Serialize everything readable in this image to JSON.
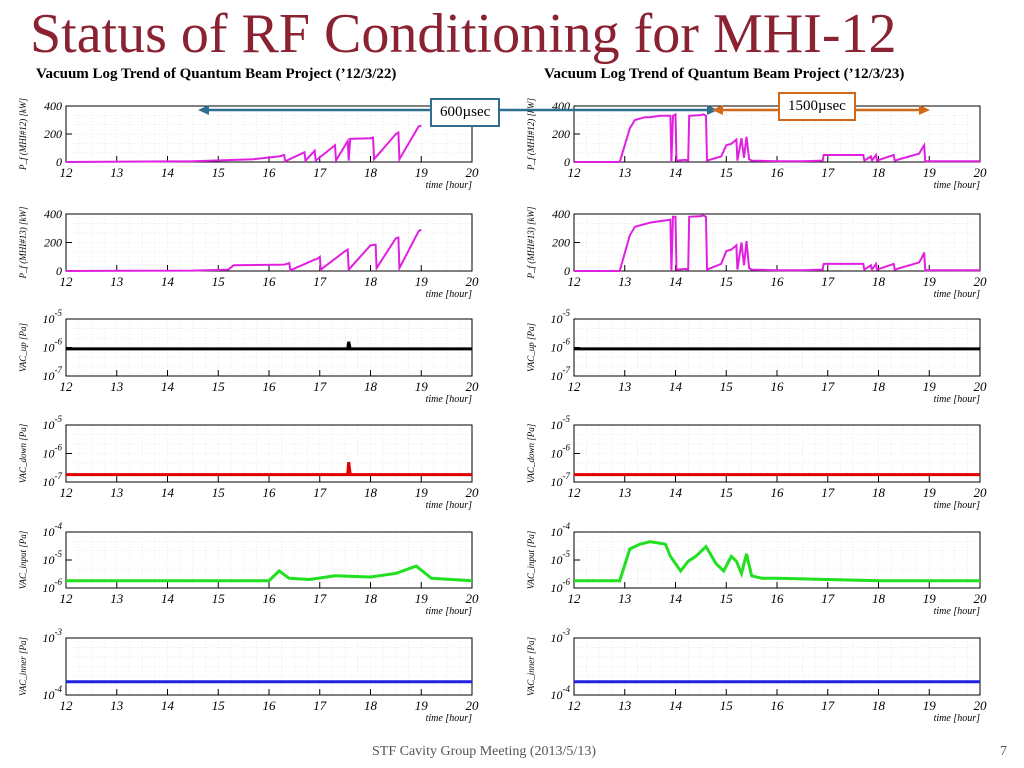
{
  "title": "Status of RF Conditioning for MHI-12",
  "footer": "STF Cavity Group Meeting (2013/5/13)",
  "page_number": "7",
  "annotations": [
    {
      "label": "600µsec",
      "color": "#2E6E8E"
    },
    {
      "label": "1500µsec",
      "color": "#D06A1A"
    }
  ],
  "chart_data": [
    {
      "type": "line",
      "title": "Vacuum Log Trend of Quantum Beam Project (’12/3/22)",
      "xlabel": "time [hour]",
      "x_ticks": [
        "12",
        "13",
        "14",
        "15",
        "16",
        "17",
        "18",
        "19",
        "20"
      ],
      "xlim": [
        12,
        20
      ],
      "panels": [
        {
          "ylabel": "P_f (MHI#12) [kW]",
          "scale": "linear",
          "ylim": [
            0,
            400
          ],
          "y_ticks": [
            "400",
            "200",
            "0"
          ],
          "color": "#E020E0",
          "series": {
            "x": [
              12,
              14.5,
              15.7,
              16.2,
              16.3,
              16.32,
              16.7,
              16.72,
              16.9,
              16.92,
              17.3,
              17.32,
              17.55,
              17.57,
              17.6,
              18.0,
              18.05,
              18.07,
              18.5,
              18.55,
              18.57,
              18.95,
              19.0
            ],
            "y": [
              0,
              5,
              20,
              40,
              50,
              5,
              70,
              10,
              80,
              10,
              120,
              10,
              150,
              10,
              165,
              170,
              175,
              20,
              200,
              210,
              20,
              255,
              260
            ]
          }
        },
        {
          "ylabel": "P_f (MHI#13) [kW]",
          "scale": "linear",
          "ylim": [
            0,
            400
          ],
          "y_ticks": [
            "400",
            "200",
            "0"
          ],
          "color": "#E020E0",
          "series": {
            "x": [
              12,
              14.5,
              15.2,
              15.3,
              16.3,
              16.4,
              16.42,
              16.9,
              16.95,
              17.0,
              17.02,
              17.5,
              17.55,
              17.57,
              18.0,
              18.1,
              18.12,
              18.5,
              18.55,
              18.57,
              18.95,
              19.0
            ],
            "y": [
              0,
              3,
              10,
              40,
              45,
              55,
              5,
              80,
              85,
              100,
              10,
              140,
              150,
              10,
              180,
              185,
              20,
              230,
              235,
              20,
              280,
              290
            ]
          }
        },
        {
          "ylabel": "VAC_up [Pa]",
          "scale": "log",
          "ylim": [
            -7,
            -5
          ],
          "y_ticks": [
            "10-5",
            "10-6",
            "10-7"
          ],
          "color": "#000000",
          "series": {
            "x": [
              12,
              17.55,
              17.57,
              17.6,
              20
            ],
            "y": [
              -6.05,
              -6.05,
              -5.8,
              -6.05,
              -6.05
            ]
          }
        },
        {
          "ylabel": "VAC_down [Pa]",
          "scale": "log",
          "ylim": [
            -7.3,
            -5
          ],
          "y_ticks": [
            "10-5",
            "10-6",
            "10-7"
          ],
          "color": "#E00000",
          "series": {
            "x": [
              12,
              17.55,
              17.57,
              17.6,
              20
            ],
            "y": [
              -7.0,
              -7.0,
              -6.5,
              -7.0,
              -7.0
            ]
          }
        },
        {
          "ylabel": "VAC_input [Pa]",
          "scale": "log",
          "ylim": [
            -6.3,
            -4
          ],
          "y_ticks": [
            "10-4",
            "10-5",
            "10-6"
          ],
          "color": "#20E020",
          "series": {
            "x": [
              12,
              16.0,
              16.2,
              16.4,
              16.8,
              17.3,
              18.0,
              18.5,
              18.9,
              19.2,
              20
            ],
            "y": [
              -6.0,
              -6.0,
              -5.6,
              -5.9,
              -5.95,
              -5.8,
              -5.85,
              -5.7,
              -5.4,
              -5.9,
              -6.0
            ]
          }
        },
        {
          "ylabel": "VAC_inner [Pa]",
          "scale": "log",
          "ylim": [
            -4.3,
            -3
          ],
          "y_ticks": [
            "10-3",
            "10-4"
          ],
          "color": "#2020E0",
          "series": {
            "x": [
              12,
              20
            ],
            "y": [
              -4.0,
              -4.0
            ]
          }
        }
      ]
    },
    {
      "type": "line",
      "title": "Vacuum Log Trend of Quantum Beam Project (’12/3/23)",
      "xlabel": "time [hour]",
      "x_ticks": [
        "12",
        "13",
        "14",
        "15",
        "16",
        "17",
        "18",
        "19",
        "20"
      ],
      "xlim": [
        12,
        20
      ],
      "panels": [
        {
          "ylabel": "P_f (MHI#12) [kW]",
          "scale": "linear",
          "ylim": [
            0,
            400
          ],
          "y_ticks": [
            "400",
            "200",
            "0"
          ],
          "color": "#E020E0",
          "series": {
            "x": [
              12,
              12.9,
              13.1,
              13.2,
              13.4,
              13.5,
              13.7,
              13.9,
              13.92,
              13.95,
              14.0,
              14.02,
              14.2,
              14.25,
              14.27,
              14.5,
              14.55,
              14.6,
              14.62,
              14.9,
              15.0,
              15.1,
              15.2,
              15.22,
              15.3,
              15.35,
              15.4,
              15.45,
              15.5,
              16.0,
              16.5,
              16.9,
              16.92,
              17.7,
              17.72,
              17.85,
              17.87,
              17.95,
              17.97,
              18.3,
              18.32,
              18.8,
              18.85,
              18.9,
              18.92,
              20
            ],
            "y": [
              0,
              0,
              240,
              300,
              320,
              320,
              330,
              330,
              0,
              330,
              340,
              10,
              15,
              10,
              330,
              335,
              340,
              330,
              10,
              40,
              120,
              130,
              160,
              10,
              170,
              30,
              180,
              20,
              10,
              5,
              5,
              10,
              50,
              50,
              10,
              40,
              10,
              50,
              10,
              50,
              10,
              60,
              90,
              120,
              5,
              5
            ]
          }
        },
        {
          "ylabel": "P_f (MHI#13) [kW]",
          "scale": "linear",
          "ylim": [
            0,
            400
          ],
          "y_ticks": [
            "400",
            "200",
            "0"
          ],
          "color": "#E020E0",
          "series": {
            "x": [
              12,
              12.9,
              13.1,
              13.2,
              13.4,
              13.5,
              13.7,
              13.9,
              13.92,
              13.95,
              14.0,
              14.02,
              14.2,
              14.25,
              14.27,
              14.5,
              14.55,
              14.6,
              14.62,
              14.9,
              15.0,
              15.1,
              15.2,
              15.22,
              15.3,
              15.35,
              15.4,
              15.45,
              15.5,
              16.0,
              16.5,
              16.9,
              16.92,
              17.7,
              17.72,
              17.85,
              17.87,
              17.95,
              17.97,
              18.3,
              18.32,
              18.8,
              18.85,
              18.9,
              18.92,
              20
            ],
            "y": [
              0,
              0,
              250,
              310,
              330,
              340,
              350,
              360,
              0,
              380,
              380,
              10,
              15,
              10,
              380,
              385,
              390,
              380,
              10,
              50,
              140,
              150,
              180,
              10,
              200,
              40,
              210,
              20,
              10,
              5,
              5,
              10,
              50,
              50,
              10,
              40,
              10,
              50,
              10,
              50,
              10,
              60,
              90,
              130,
              5,
              5
            ]
          }
        },
        {
          "ylabel": "VAC_up [Pa]",
          "scale": "log",
          "ylim": [
            -7,
            -5
          ],
          "y_ticks": [
            "10-5",
            "10-6",
            "10-7"
          ],
          "color": "#000000",
          "series": {
            "x": [
              12,
              20
            ],
            "y": [
              -6.05,
              -6.05
            ]
          }
        },
        {
          "ylabel": "VAC_down [Pa]",
          "scale": "log",
          "ylim": [
            -7.3,
            -5
          ],
          "y_ticks": [
            "10-5",
            "10-6",
            "10-7"
          ],
          "color": "#E00000",
          "series": {
            "x": [
              12,
              20
            ],
            "y": [
              -7.0,
              -7.0
            ]
          }
        },
        {
          "ylabel": "VAC_input [Pa]",
          "scale": "log",
          "ylim": [
            -6.3,
            -4
          ],
          "y_ticks": [
            "10-4",
            "10-5",
            "10-6"
          ],
          "color": "#20E020",
          "series": {
            "x": [
              12,
              12.9,
              13.1,
              13.3,
              13.5,
              13.8,
              13.9,
              14.1,
              14.25,
              14.4,
              14.6,
              14.8,
              14.95,
              15.1,
              15.2,
              15.3,
              15.4,
              15.5,
              15.7,
              16.0,
              17.0,
              18.0,
              19.0,
              20
            ],
            "y": [
              -6.0,
              -6.0,
              -4.7,
              -4.5,
              -4.4,
              -4.5,
              -5.0,
              -5.6,
              -5.2,
              -5.0,
              -4.6,
              -5.3,
              -5.6,
              -5.0,
              -5.2,
              -5.7,
              -4.9,
              -5.8,
              -5.9,
              -5.9,
              -5.95,
              -6.0,
              -6.0,
              -6.0
            ]
          }
        },
        {
          "ylabel": "VAC_inner [Pa]",
          "scale": "log",
          "ylim": [
            -4.3,
            -3
          ],
          "y_ticks": [
            "10-3",
            "10-4"
          ],
          "color": "#2020E0",
          "series": {
            "x": [
              12,
              20
            ],
            "y": [
              -4.0,
              -4.0
            ]
          }
        }
      ]
    }
  ]
}
